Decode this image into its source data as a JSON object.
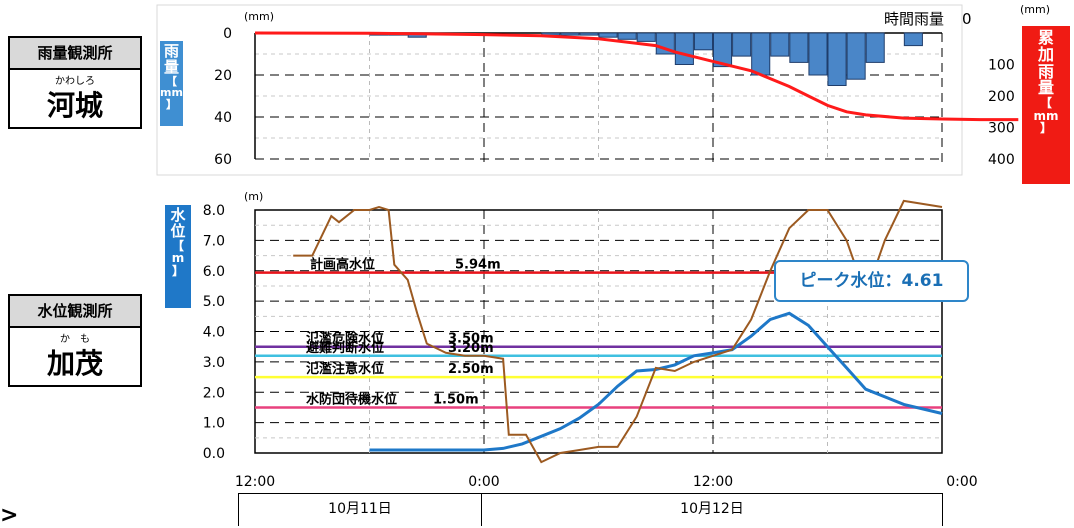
{
  "stations": {
    "rain": {
      "header": "雨量観測所",
      "ruby": "かわしろ",
      "name": "河城"
    },
    "water": {
      "header": "水位観測所",
      "ruby": "か　も",
      "name": "加茂"
    }
  },
  "rain_chart": {
    "unit_left": "(mm)",
    "unit_right": "(mm)",
    "legend": "時間雨量",
    "left_axis_label": [
      "雨",
      "量",
      "【",
      "mm",
      "】"
    ],
    "right_axis_label": [
      "累",
      "加",
      "雨",
      "量",
      "【",
      "mm",
      "】"
    ]
  },
  "water_chart": {
    "unit": "(m)",
    "axis_label": [
      "水",
      "位",
      "【",
      "m",
      "】"
    ],
    "peak_label": "ピーク水位：4.61"
  },
  "dates": {
    "day1": "10月11日",
    "day2": "10月12日"
  },
  "chart_data": [
    {
      "type": "bar",
      "ylim": [
        0,
        60
      ],
      "y2lim": [
        0,
        400
      ],
      "yticks": [
        "0",
        "20",
        "40",
        "60"
      ],
      "y2ticks": [
        "0",
        "100",
        "200",
        "300",
        "400"
      ],
      "y2tick_zero": "0",
      "series": [
        {
          "name": "時間雨量",
          "x": [
            6,
            7,
            8,
            15,
            16,
            17,
            18,
            19,
            20,
            21,
            22,
            23,
            24,
            25,
            26,
            27,
            28,
            29,
            30,
            31,
            32,
            34
          ],
          "values": [
            1,
            1,
            2,
            1,
            1,
            1,
            2,
            3,
            4,
            10,
            15,
            8,
            16,
            11,
            20,
            11,
            14,
            20,
            25,
            22,
            14,
            6
          ]
        },
        {
          "name": "",
          "x": [
            0,
            6,
            9,
            12,
            15,
            18,
            21,
            22,
            24,
            26,
            28,
            29,
            30,
            31,
            32,
            34,
            36,
            38,
            40
          ],
          "values": [
            0,
            1,
            3,
            5,
            9,
            18,
            40,
            60,
            90,
            120,
            170,
            200,
            230,
            250,
            260,
            270,
            273,
            275,
            275
          ]
        }
      ]
    },
    {
      "type": "line",
      "ylim": [
        0,
        8
      ],
      "x_ticks": [
        "12:00",
        "0:00",
        "12:00",
        "0:00"
      ],
      "yticks": [
        "0.0",
        "1.0",
        "2.0",
        "3.0",
        "4.0",
        "5.0",
        "6.0",
        "7.0",
        "8.0"
      ],
      "thresholds": [
        {
          "name": "計画高水位",
          "value": 5.94,
          "label": "5.94m",
          "color": "#e8141b"
        },
        {
          "name": "氾濫危険水位",
          "value": 3.5,
          "label": "3.50m",
          "color": "#7030a0"
        },
        {
          "name": "避難判断水位",
          "value": 3.2,
          "label": "3.20m",
          "color": "#3fc0e0"
        },
        {
          "name": "氾濫注意水位",
          "value": 2.5,
          "label": "2.50m",
          "color": "#ffff33"
        },
        {
          "name": "水防団待機水位",
          "value": 1.5,
          "label": "1.50m",
          "color": "#e8417e"
        }
      ],
      "series": [
        {
          "name": "",
          "color": "#1e78c8",
          "x": [
            6,
            8,
            10,
            12,
            13,
            14,
            15,
            16,
            17,
            18,
            19,
            20,
            21,
            22,
            23,
            24,
            25,
            26,
            27,
            28,
            29,
            30,
            31,
            32,
            34,
            36
          ],
          "values": [
            0.1,
            0.1,
            0.1,
            0.1,
            0.15,
            0.3,
            0.55,
            0.8,
            1.15,
            1.6,
            2.2,
            2.7,
            2.75,
            2.9,
            3.2,
            3.3,
            3.4,
            3.85,
            4.4,
            4.6,
            4.2,
            3.5,
            2.8,
            2.1,
            1.6,
            1.3
          ]
        },
        {
          "name": "",
          "color": "#9c5a21",
          "x": [
            2,
            3,
            4,
            4.4,
            5.2,
            6,
            6.5,
            7,
            7.3,
            8,
            8.5,
            9,
            10,
            11,
            12,
            13,
            13.3,
            14.2,
            15,
            16,
            17,
            18,
            19,
            20,
            21,
            22,
            23,
            24,
            25,
            26,
            27,
            28,
            29,
            30,
            31,
            32,
            33,
            34,
            36
          ],
          "values": [
            6.5,
            6.5,
            7.8,
            7.6,
            8.0,
            8.0,
            8.1,
            8.0,
            6.2,
            5.7,
            4.6,
            3.6,
            3.3,
            3.2,
            3.2,
            3.1,
            0.6,
            0.6,
            -0.3,
            0.0,
            0.1,
            0.2,
            0.2,
            1.2,
            2.8,
            2.7,
            3.0,
            3.2,
            3.4,
            4.4,
            6.0,
            7.4,
            8.0,
            8.0,
            7.0,
            5.2,
            7.0,
            8.3,
            8.1
          ]
        }
      ]
    }
  ]
}
